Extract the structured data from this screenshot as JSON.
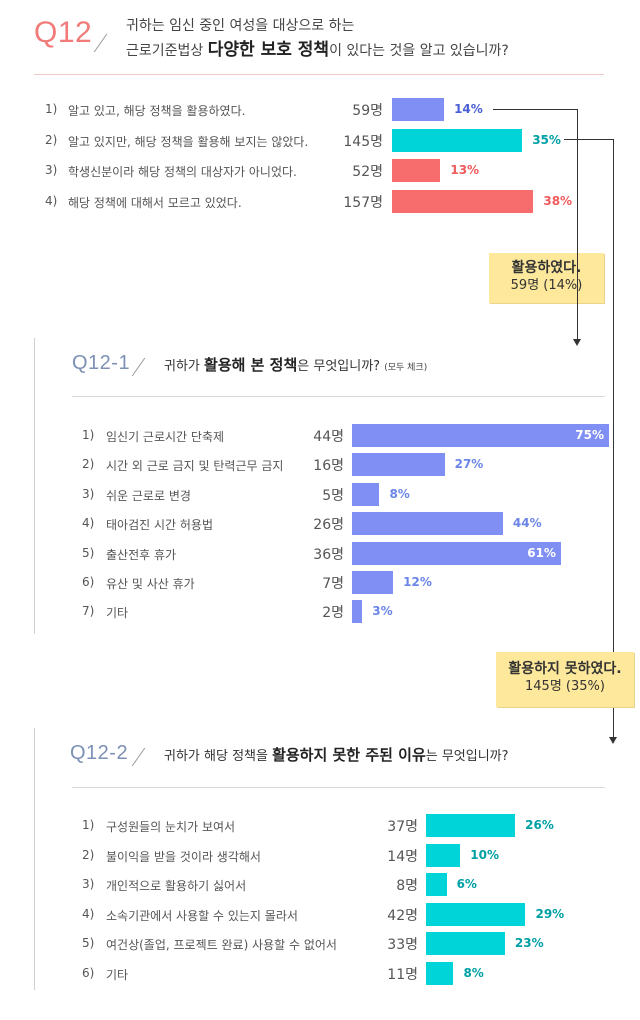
{
  "q12": {
    "num": "Q12",
    "line1": "귀하는 임신 중인 여성을 대상으로 하는",
    "line2_pre": "근로기준법상 ",
    "line2_bold": "다양한 보호 정책",
    "line2_post": "이 있다는 것을 알고 있습니까?"
  },
  "q121": {
    "num": "Q12-1",
    "pre": "귀하가 ",
    "bold": "활용해 본 정책",
    "post": "은 무엇입니까?",
    "note": "(모두 체크)"
  },
  "q122": {
    "num": "Q12-2",
    "pre": "귀하가 해당 정책을 ",
    "bold": "활용하지 못한 주된 이유",
    "post": "는 무엇입니까?"
  },
  "callouts": {
    "used_title": "활용하였다.",
    "used_sub": "59명 (14%)",
    "notused_title": "활용하지 못하였다.",
    "notused_sub": "145명 (35%)"
  },
  "colors": {
    "blue": "#7f8ff3",
    "teal": "#00d4d8",
    "coral": "#f76c6c",
    "label_blue": "#4a5fd6",
    "label_teal": "#00a0a4",
    "label_coral": "#f05b5b",
    "label_lightblue": "#6b86e8"
  },
  "chart_data": [
    {
      "type": "bar",
      "title": "Q12",
      "categories": [
        "알고 있고, 해당 정책을 활용하였다.",
        "알고 있지만, 해당 정책을 활용해 보지는 않았다.",
        "학생신분이라 해당 정책의 대상자가 아니었다.",
        "해당 정책에 대해서 모르고 있었다."
      ],
      "index_labels": [
        "1)",
        "2)",
        "3)",
        "4)"
      ],
      "counts": [
        "59명",
        "145명",
        "52명",
        "157명"
      ],
      "values": [
        14,
        35,
        13,
        38
      ],
      "value_labels": [
        "14%",
        "35%",
        "13%",
        "38%"
      ],
      "bar_colors": [
        "blue",
        "teal",
        "coral",
        "coral"
      ],
      "label_colors": [
        "label_blue",
        "label_teal",
        "label_coral",
        "label_coral"
      ],
      "xlim": [
        0,
        100
      ]
    },
    {
      "type": "bar",
      "title": "Q12-1",
      "categories": [
        "임신기 근로시간 단축제",
        "시간 외 근로 금지 및 탄력근무 금지",
        "쉬운 근로로 변경",
        "태아검진 시간 허용법",
        "출산전후 휴가",
        "유산 및 사산 휴가",
        "기타"
      ],
      "index_labels": [
        "1)",
        "2)",
        "3)",
        "4)",
        "5)",
        "6)",
        "7)"
      ],
      "counts": [
        "44명",
        "16명",
        "5명",
        "26명",
        "36명",
        "7명",
        "2명"
      ],
      "values": [
        75,
        27,
        8,
        44,
        61,
        12,
        3
      ],
      "value_labels": [
        "75%",
        "27%",
        "8%",
        "44%",
        "61%",
        "12%",
        "3%"
      ],
      "xlim": [
        0,
        100
      ]
    },
    {
      "type": "bar",
      "title": "Q12-2",
      "categories": [
        "구성원들의 눈치가 보여서",
        "불이익을 받을 것이라 생각해서",
        "개인적으로 활용하기 싫어서",
        "소속기관에서 사용할 수 있는지 몰라서",
        "여건상(졸업, 프로젝트 완료) 사용할 수 없어서",
        "기타"
      ],
      "index_labels": [
        "1)",
        "2)",
        "3)",
        "4)",
        "5)",
        "6)"
      ],
      "counts": [
        "37명",
        "14명",
        "8명",
        "42명",
        "33명",
        "11명"
      ],
      "values": [
        26,
        10,
        6,
        29,
        23,
        8
      ],
      "value_labels": [
        "26%",
        "10%",
        "6%",
        "29%",
        "23%",
        "8%"
      ],
      "xlim": [
        0,
        100
      ]
    }
  ]
}
